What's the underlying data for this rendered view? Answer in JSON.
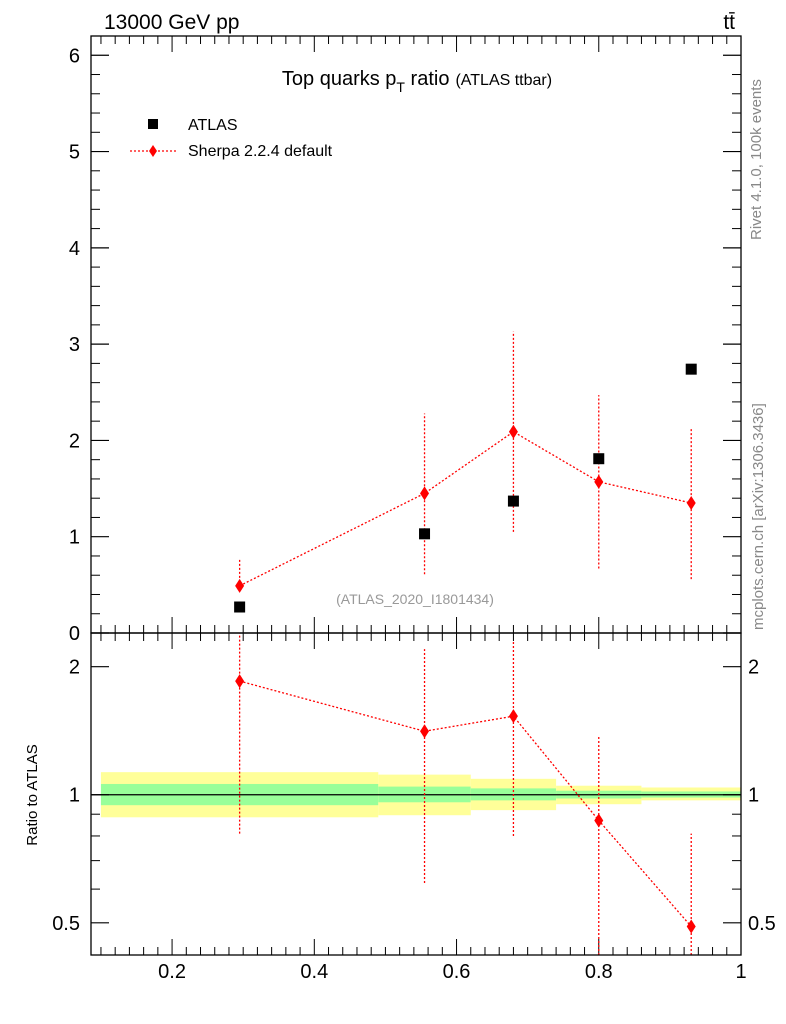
{
  "header": {
    "energy_label": "13000 GeV pp",
    "process_label": "tt̄"
  },
  "side_labels": {
    "rivet": "Rivet 4.1.0,  100k events",
    "mcplots": "mcplots.cern.ch [arXiv:1306.3436]"
  },
  "chart_data": [
    {
      "type": "scatter",
      "title_main": "Top quarks p",
      "title_sub": "T",
      "title_rest": " ratio",
      "title_note": "(ATLAS ttbar)",
      "watermark": "(ATLAS_2020_I1801434)",
      "xlim": [
        0.086,
        1.0
      ],
      "ylim": [
        0,
        6.2
      ],
      "yticks": [
        0,
        1,
        2,
        3,
        4,
        5,
        6
      ],
      "ytick_labels": [
        "0",
        "1",
        "2",
        "3",
        "4",
        "5",
        "6"
      ],
      "legend_position": "top-left",
      "series": [
        {
          "name": "ATLAS",
          "color": "#000000",
          "marker": "square",
          "x": [
            0.295,
            0.555,
            0.68,
            0.8,
            0.93
          ],
          "y": [
            0.27,
            1.03,
            1.37,
            1.81,
            2.74
          ]
        },
        {
          "name": "Sherpa 2.2.4 default",
          "color": "#ff0000",
          "marker": "diamond",
          "line": "dotted",
          "x": [
            0.295,
            0.555,
            0.68,
            0.8,
            0.93
          ],
          "y": [
            0.49,
            1.45,
            2.09,
            1.57,
            1.35
          ],
          "err_low": [
            0.49,
            0.61,
            1.05,
            0.67,
            0.56
          ],
          "err_high": [
            0.77,
            2.28,
            3.13,
            2.47,
            2.12
          ]
        }
      ]
    },
    {
      "type": "scatter",
      "ylabel": "Ratio to ATLAS",
      "xlim": [
        0.086,
        1.0
      ],
      "ylim": [
        0.42,
        2.4
      ],
      "scale": "log",
      "xticks": [
        0.2,
        0.4,
        0.6,
        0.8,
        1.0
      ],
      "xtick_labels": [
        "0.2",
        "0.4",
        "0.6",
        "0.8",
        "1"
      ],
      "yticks": [
        0.5,
        1,
        2
      ],
      "ytick_labels": [
        "0.5",
        "1",
        "2"
      ],
      "bands": {
        "edges": [
          0.1,
          0.49,
          0.62,
          0.74,
          0.86,
          1.0
        ],
        "inner_low": [
          0.945,
          0.96,
          0.97,
          0.98,
          0.985
        ],
        "inner_high": [
          1.06,
          1.045,
          1.035,
          1.022,
          1.018
        ],
        "outer_low": [
          0.885,
          0.895,
          0.92,
          0.95,
          0.97
        ],
        "outer_high": [
          1.13,
          1.115,
          1.09,
          1.05,
          1.04
        ],
        "inner_color": "#99ff99",
        "outer_color": "#ffff99"
      },
      "series": [
        {
          "name": "Sherpa 2.2.4 default",
          "color": "#ff0000",
          "x": [
            0.295,
            0.555,
            0.68,
            0.8,
            0.93
          ],
          "y": [
            1.85,
            1.41,
            1.53,
            0.87,
            0.49
          ],
          "err_low": [
            0.81,
            0.62,
            0.8,
            0.4,
            0.2
          ],
          "err_high": [
            2.6,
            2.2,
            2.3,
            1.38,
            0.81
          ]
        }
      ]
    }
  ]
}
